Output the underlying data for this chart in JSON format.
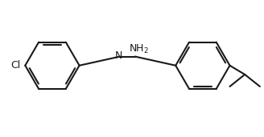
{
  "background_color": "#ffffff",
  "line_color": "#1a1a1a",
  "line_width": 1.5,
  "font_size_label": 9,
  "bond_color": "#1a1a1a",
  "text_color": "#1a1a1a"
}
